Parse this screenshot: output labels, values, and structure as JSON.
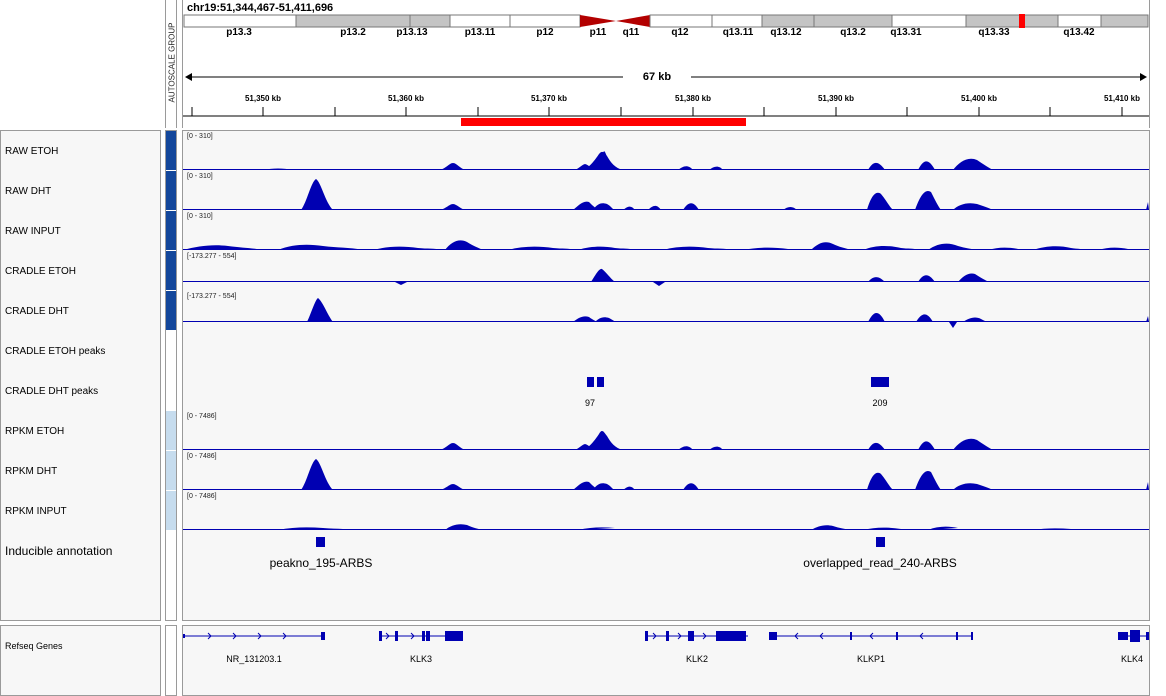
{
  "locus": "chr19:51,344,467-51,411,696",
  "span_label": "67 kb",
  "attribute_header": "AUTOSCALE GROUP",
  "colors": {
    "signal": "#0000b2",
    "region": "#ff0000",
    "centromere": "#b30000",
    "attr_dark": "#14479b",
    "attr_light": "#c6dcee",
    "band_gray": "#c4c4c4"
  },
  "cytobands": [
    "p13.3",
    "p13.2",
    "p13.13",
    "p13.11",
    "p12",
    "p11",
    "q11",
    "q12",
    "q13.11",
    "q13.12",
    "q13.2",
    "q13.31",
    "q13.33",
    "q13.42"
  ],
  "ruler_ticks": [
    "51,350 kb",
    "51,360 kb",
    "51,370 kb",
    "51,380 kb",
    "51,390 kb",
    "51,400 kb",
    "51,410 kb"
  ],
  "tracks": [
    {
      "name": "RAW ETOH",
      "range": "[0 - 310]"
    },
    {
      "name": "RAW DHT",
      "range": "[0 - 310]"
    },
    {
      "name": "RAW INPUT",
      "range": "[0 - 310]"
    },
    {
      "name": "CRADLE ETOH",
      "range": "[-173.277 - 554]"
    },
    {
      "name": "CRADLE DHT",
      "range": "[-173.277 - 554]"
    },
    {
      "name": "CRADLE ETOH peaks",
      "range": ""
    },
    {
      "name": "CRADLE DHT peaks",
      "range": ""
    },
    {
      "name": "RPKM ETOH",
      "range": "[0 - 7486]"
    },
    {
      "name": "RPKM DHT",
      "range": "[0 - 7486]"
    },
    {
      "name": "RPKM INPUT",
      "range": "[0 - 7486]"
    }
  ],
  "dht_peaks": [
    "97",
    "209"
  ],
  "inducible_track": "Inducible annotation",
  "inducible_features": [
    "peakno_195-ARBS",
    "overlapped_read_240-ARBS"
  ],
  "refseq_track": "Refseq Genes",
  "genes": [
    "NR_131203.1",
    "KLK3",
    "KLK2",
    "KLKP1",
    "KLK4"
  ]
}
